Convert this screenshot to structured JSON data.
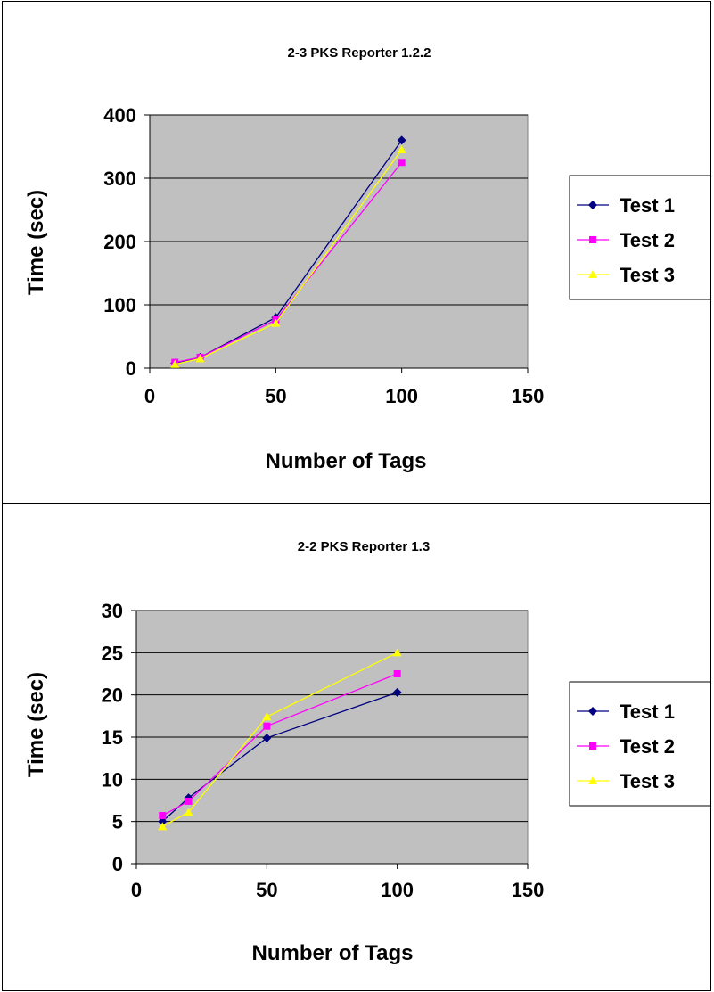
{
  "chart_data": [
    {
      "type": "line",
      "title": "2-3 PKS Reporter 1.2.2",
      "xlabel": "Number of Tags",
      "ylabel": "Time (sec)",
      "xlim": [
        0,
        150
      ],
      "ylim": [
        0,
        400
      ],
      "xticks": [
        0,
        50,
        100,
        150
      ],
      "yticks": [
        0,
        100,
        200,
        300,
        400
      ],
      "grid": true,
      "legend": "right",
      "colors": {
        "plot_bg": "#c0c0c0"
      },
      "series": [
        {
          "name": "Test 1",
          "color": "#000080",
          "marker": "diamond",
          "x": [
            10,
            20,
            50,
            100
          ],
          "y": [
            8,
            17,
            80,
            360
          ]
        },
        {
          "name": "Test 2",
          "color": "#ff00ff",
          "marker": "square",
          "x": [
            10,
            20,
            50,
            100
          ],
          "y": [
            9,
            17,
            76,
            325
          ]
        },
        {
          "name": "Test 3",
          "color": "#ffff00",
          "marker": "triangle",
          "x": [
            10,
            20,
            50,
            100
          ],
          "y": [
            6,
            15,
            71,
            345
          ]
        }
      ]
    },
    {
      "type": "line",
      "title": "2-2 PKS Reporter 1.3",
      "xlabel": "Number of Tags",
      "ylabel": "Time (sec)",
      "xlim": [
        0,
        150
      ],
      "ylim": [
        0,
        30
      ],
      "xticks": [
        0,
        50,
        100,
        150
      ],
      "yticks": [
        0,
        5,
        10,
        15,
        20,
        25,
        30
      ],
      "grid": true,
      "legend": "right",
      "colors": {
        "plot_bg": "#c0c0c0"
      },
      "series": [
        {
          "name": "Test 1",
          "color": "#000080",
          "marker": "diamond",
          "x": [
            10,
            20,
            50,
            100
          ],
          "y": [
            5,
            7.8,
            14.9,
            20.3
          ]
        },
        {
          "name": "Test 2",
          "color": "#ff00ff",
          "marker": "square",
          "x": [
            10,
            20,
            50,
            100
          ],
          "y": [
            5.7,
            7.4,
            16.3,
            22.5
          ]
        },
        {
          "name": "Test 3",
          "color": "#ffff00",
          "marker": "triangle",
          "x": [
            10,
            20,
            50,
            100
          ],
          "y": [
            4.4,
            6.1,
            17.4,
            25
          ]
        }
      ]
    }
  ]
}
